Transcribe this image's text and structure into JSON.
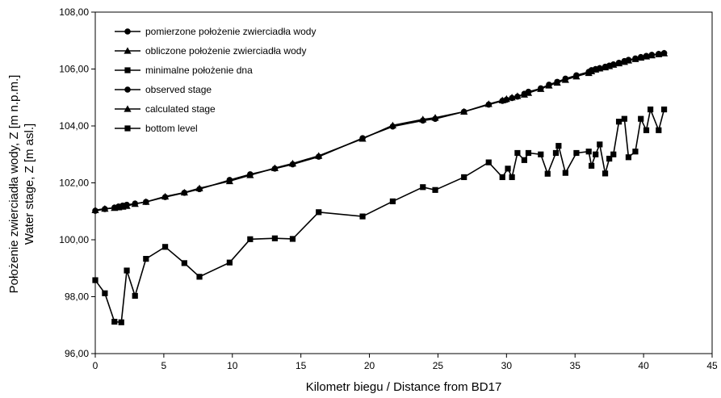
{
  "chart_data": {
    "type": "line",
    "title": "",
    "xlabel": "Kilometr biegu / Distance from BD17",
    "ylabel_lines": [
      "Położenie zwierciadła wody, Z [m n.p.m.]",
      "Water stage, Z [m asl.]"
    ],
    "xlim": [
      0,
      45
    ],
    "ylim": [
      96,
      108
    ],
    "x_ticks": [
      "0",
      "5",
      "10",
      "15",
      "20",
      "25",
      "30",
      "35",
      "40",
      "45"
    ],
    "y_ticks": [
      "96,00",
      "98,00",
      "100,00",
      "102,00",
      "104,00",
      "106,00",
      "108,00"
    ],
    "grid": false,
    "legend_position": "top-left",
    "legend": [
      {
        "label": "pomierzone położenie zwierciadła wody",
        "marker": "circle"
      },
      {
        "label": "obliczone położenie zwierciadła wody",
        "marker": "triangle"
      },
      {
        "label": "minimalne położenie dna",
        "marker": "square"
      },
      {
        "label": "observed stage",
        "marker": "circle"
      },
      {
        "label": "calculated stage",
        "marker": "triangle"
      },
      {
        "label": "bottom level",
        "marker": "square"
      }
    ],
    "series": [
      {
        "name": "observed stage",
        "marker": "circle",
        "x": [
          0.0,
          0.7,
          1.4,
          1.7,
          2.0,
          2.3,
          2.9,
          3.7,
          5.1,
          6.5,
          7.6,
          9.8,
          11.3,
          13.1,
          14.4,
          16.3,
          19.5,
          21.7,
          23.9,
          24.8,
          26.9,
          28.7,
          29.7,
          30.0,
          30.4,
          30.8,
          31.3,
          31.6,
          32.5,
          33.1,
          33.7,
          34.3,
          35.1,
          36.0,
          36.2,
          36.5,
          36.8,
          37.2,
          37.5,
          37.8,
          38.2,
          38.6,
          38.9,
          39.4,
          39.8,
          40.2,
          40.6,
          41.1,
          41.5
        ],
        "y": [
          101.02,
          101.08,
          101.13,
          101.17,
          101.2,
          101.23,
          101.27,
          101.33,
          101.5,
          101.65,
          101.78,
          102.1,
          102.3,
          102.5,
          102.65,
          102.92,
          103.57,
          103.98,
          104.19,
          104.25,
          104.5,
          104.75,
          104.88,
          104.92,
          104.98,
          105.03,
          105.13,
          105.2,
          105.32,
          105.45,
          105.55,
          105.66,
          105.78,
          105.9,
          105.96,
          106.0,
          106.03,
          106.08,
          106.12,
          106.16,
          106.22,
          106.28,
          106.32,
          106.37,
          106.42,
          106.46,
          106.5,
          106.53,
          106.56
        ]
      },
      {
        "name": "calculated stage",
        "marker": "triangle",
        "x": [
          0.0,
          0.7,
          1.4,
          1.7,
          2.0,
          2.3,
          2.9,
          3.7,
          5.1,
          6.5,
          7.6,
          9.8,
          11.3,
          13.1,
          14.4,
          16.3,
          19.5,
          21.7,
          23.9,
          24.8,
          26.9,
          28.7,
          29.7,
          30.0,
          30.4,
          30.8,
          31.3,
          31.6,
          32.5,
          33.1,
          33.7,
          34.3,
          35.1,
          36.0,
          36.2,
          36.5,
          36.8,
          37.2,
          37.5,
          37.8,
          38.2,
          38.6,
          38.9,
          39.4,
          39.8,
          40.2,
          40.6,
          41.1,
          41.5
        ],
        "y": [
          101.04,
          101.09,
          101.12,
          101.14,
          101.16,
          101.19,
          101.26,
          101.33,
          101.52,
          101.66,
          101.81,
          102.06,
          102.27,
          102.52,
          102.68,
          102.95,
          103.55,
          104.02,
          104.23,
          104.29,
          104.5,
          104.77,
          104.9,
          104.95,
          105.0,
          105.05,
          105.1,
          105.16,
          105.3,
          105.42,
          105.52,
          105.62,
          105.74,
          105.86,
          105.92,
          105.98,
          106.02,
          106.06,
          106.1,
          106.15,
          106.2,
          106.25,
          106.3,
          106.35,
          106.4,
          106.44,
          106.48,
          106.52,
          106.55
        ]
      },
      {
        "name": "bottom level",
        "marker": "square",
        "x": [
          0.0,
          0.7,
          1.4,
          1.9,
          2.3,
          2.9,
          3.7,
          5.1,
          6.5,
          7.6,
          9.8,
          11.3,
          13.1,
          14.4,
          16.3,
          19.5,
          21.7,
          23.9,
          24.8,
          26.9,
          28.7,
          29.7,
          30.1,
          30.4,
          30.8,
          31.3,
          31.6,
          32.5,
          33.0,
          33.6,
          33.8,
          34.3,
          35.1,
          36.0,
          36.2,
          36.5,
          36.8,
          37.2,
          37.5,
          37.8,
          38.2,
          38.6,
          38.9,
          39.4,
          39.8,
          40.2,
          40.5,
          41.1,
          41.5
        ],
        "y": [
          98.58,
          98.12,
          97.12,
          97.1,
          98.92,
          98.03,
          99.33,
          99.75,
          99.18,
          98.7,
          99.2,
          100.02,
          100.05,
          100.03,
          100.97,
          100.82,
          101.35,
          101.85,
          101.75,
          102.2,
          102.72,
          102.2,
          102.5,
          102.2,
          103.05,
          102.8,
          103.05,
          103.0,
          102.32,
          103.05,
          103.3,
          102.35,
          103.05,
          103.1,
          102.6,
          103.0,
          103.35,
          102.33,
          102.85,
          103.0,
          104.15,
          104.25,
          102.9,
          103.1,
          104.25,
          103.85,
          104.58,
          103.85,
          104.58
        ]
      }
    ]
  }
}
